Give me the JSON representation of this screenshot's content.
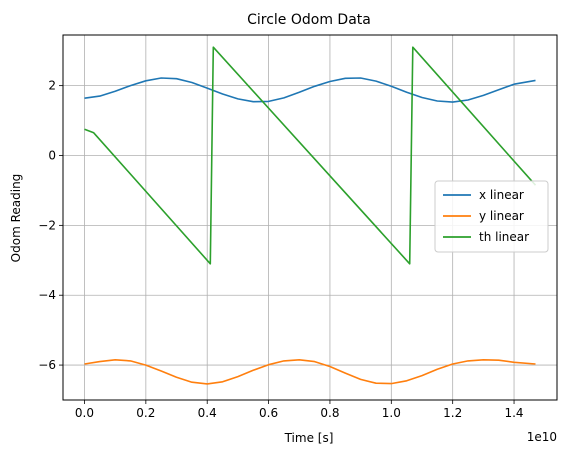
{
  "chart_data": {
    "type": "line",
    "title": "Circle Odom Data",
    "xlabel": "Time [s]",
    "ylabel": "Odom Reading",
    "x_offset_label": "1e10",
    "xlim": [
      -0.07,
      1.54
    ],
    "ylim": [
      -7.0,
      3.45
    ],
    "xticks": [
      0.0,
      0.2,
      0.4,
      0.6,
      0.8,
      1.0,
      1.2,
      1.4
    ],
    "xtick_labels": [
      "0.0",
      "0.2",
      "0.4",
      "0.6",
      "0.8",
      "1.0",
      "1.2",
      "1.4"
    ],
    "yticks": [
      2,
      0,
      -2,
      -4,
      -6
    ],
    "ytick_labels": [
      "2",
      "0",
      "−2",
      "−4",
      "−6"
    ],
    "grid": true,
    "legend_position": "center-right",
    "series": [
      {
        "name": "x linear",
        "color": "#1f77b4",
        "x": [
          0.0,
          0.05,
          0.1,
          0.15,
          0.2,
          0.25,
          0.3,
          0.35,
          0.4,
          0.45,
          0.5,
          0.55,
          0.6,
          0.65,
          0.7,
          0.75,
          0.8,
          0.85,
          0.9,
          0.95,
          1.0,
          1.05,
          1.1,
          1.15,
          1.2,
          1.25,
          1.3,
          1.35,
          1.4,
          1.47
        ],
        "values": [
          1.64,
          1.7,
          1.84,
          2.0,
          2.14,
          2.22,
          2.2,
          2.09,
          1.93,
          1.76,
          1.62,
          1.54,
          1.55,
          1.65,
          1.81,
          1.98,
          2.12,
          2.21,
          2.22,
          2.13,
          1.98,
          1.81,
          1.66,
          1.56,
          1.53,
          1.59,
          1.72,
          1.88,
          2.04,
          2.15
        ]
      },
      {
        "name": "y linear",
        "color": "#ff7f0e",
        "x": [
          0.0,
          0.05,
          0.1,
          0.15,
          0.2,
          0.25,
          0.3,
          0.35,
          0.4,
          0.45,
          0.5,
          0.55,
          0.6,
          0.65,
          0.7,
          0.75,
          0.8,
          0.85,
          0.9,
          0.95,
          1.0,
          1.05,
          1.1,
          1.15,
          1.2,
          1.25,
          1.3,
          1.35,
          1.4,
          1.47
        ],
        "values": [
          -5.97,
          -5.9,
          -5.85,
          -5.88,
          -6.0,
          -6.17,
          -6.35,
          -6.49,
          -6.54,
          -6.48,
          -6.33,
          -6.15,
          -5.99,
          -5.88,
          -5.85,
          -5.9,
          -6.04,
          -6.23,
          -6.41,
          -6.52,
          -6.53,
          -6.45,
          -6.3,
          -6.12,
          -5.97,
          -5.88,
          -5.85,
          -5.86,
          -5.92,
          -5.97
        ]
      },
      {
        "name": "th linear",
        "color": "#2ca02c",
        "x": [
          0.0,
          0.03,
          0.41,
          0.42,
          1.06,
          1.07,
          1.47
        ],
        "values": [
          0.75,
          0.65,
          -3.1,
          3.1,
          -3.1,
          3.1,
          -0.85
        ]
      }
    ]
  }
}
